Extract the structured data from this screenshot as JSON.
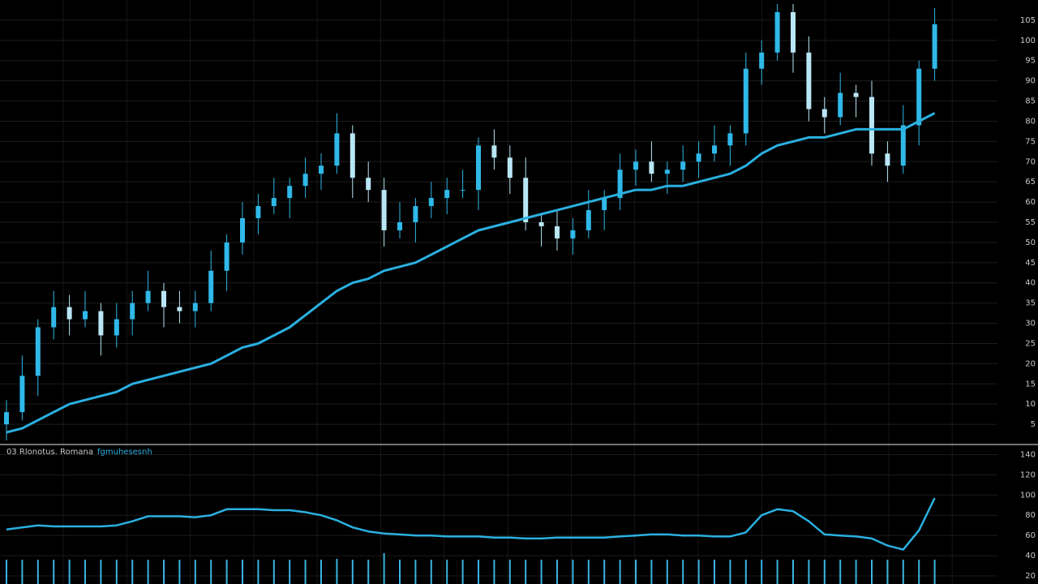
{
  "chart_data": [
    {
      "type": "candlestick",
      "up_color": "#2fb8e8",
      "down_color": "#b9e6f4",
      "grid": true,
      "ylim": [
        0,
        110
      ],
      "yticks": [
        5,
        10,
        15,
        20,
        25,
        30,
        35,
        40,
        45,
        50,
        55,
        60,
        65,
        70,
        75,
        80,
        85,
        90,
        95,
        100,
        105
      ],
      "open": [
        5,
        8,
        17,
        29,
        34,
        31,
        33,
        27,
        31,
        35,
        38,
        34,
        33,
        35,
        43,
        50,
        56,
        59,
        61,
        64,
        67,
        69,
        77,
        66,
        63,
        53,
        55,
        59,
        61,
        63,
        63,
        74,
        71,
        66,
        55,
        54,
        51,
        53,
        58,
        61,
        68,
        70,
        67,
        68,
        70,
        72,
        74,
        77,
        93,
        97,
        107,
        97,
        83,
        81,
        87,
        86,
        72,
        69,
        79,
        93
      ],
      "high": [
        11,
        22,
        31,
        38,
        37,
        38,
        35,
        35,
        38,
        43,
        40,
        38,
        38,
        48,
        52,
        60,
        62,
        66,
        66,
        71,
        72,
        82,
        79,
        70,
        66,
        60,
        61,
        65,
        66,
        68,
        76,
        78,
        74,
        71,
        57,
        58,
        56,
        63,
        63,
        72,
        73,
        75,
        70,
        74,
        75,
        79,
        79,
        97,
        100,
        109,
        109,
        101,
        86,
        92,
        89,
        90,
        75,
        84,
        95,
        108
      ],
      "low": [
        1,
        6,
        12,
        26,
        27,
        29,
        22,
        24,
        27,
        33,
        29,
        30,
        29,
        33,
        38,
        47,
        52,
        57,
        56,
        61,
        63,
        67,
        61,
        60,
        49,
        51,
        50,
        56,
        57,
        61,
        58,
        68,
        62,
        53,
        49,
        48,
        47,
        51,
        53,
        58,
        64,
        65,
        62,
        65,
        66,
        70,
        69,
        74,
        89,
        95,
        92,
        80,
        77,
        79,
        81,
        69,
        65,
        67,
        74,
        90
      ],
      "close": [
        8,
        17,
        29,
        34,
        31,
        33,
        27,
        31,
        35,
        38,
        34,
        33,
        35,
        43,
        50,
        56,
        59,
        61,
        64,
        67,
        69,
        77,
        66,
        63,
        53,
        55,
        59,
        61,
        63,
        63,
        74,
        71,
        66,
        55,
        54,
        51,
        53,
        58,
        61,
        68,
        70,
        67,
        68,
        70,
        72,
        74,
        77,
        93,
        97,
        107,
        97,
        83,
        81,
        87,
        86,
        72,
        69,
        79,
        93,
        104
      ],
      "overlay": {
        "color": "#2ab0e0",
        "values": [
          3,
          4,
          6,
          8,
          10,
          11,
          12,
          13,
          15,
          16,
          17,
          18,
          19,
          20,
          22,
          24,
          25,
          27,
          29,
          32,
          35,
          38,
          40,
          41,
          43,
          44,
          45,
          47,
          49,
          51,
          53,
          54,
          55,
          56,
          57,
          58,
          59,
          60,
          61,
          62,
          63,
          63,
          64,
          64,
          65,
          66,
          67,
          69,
          72,
          74,
          75,
          76,
          76,
          77,
          78,
          78,
          78,
          78,
          80,
          82
        ]
      }
    },
    {
      "type": "line",
      "title": "03 Rlonotus. Romana",
      "grid": true,
      "ylim": [
        12,
        150
      ],
      "yticks": [
        20,
        40,
        60,
        80,
        100,
        120,
        140
      ],
      "series": [
        {
          "name": "fgmuhesesnh",
          "color": "#2ab0e0",
          "values": [
            66,
            68,
            70,
            69,
            69,
            69,
            69,
            70,
            74,
            79,
            79,
            79,
            78,
            80,
            86,
            86,
            86,
            85,
            85,
            83,
            80,
            75,
            68,
            64,
            62,
            61,
            60,
            60,
            59,
            59,
            59,
            58,
            58,
            57,
            57,
            58,
            58,
            58,
            58,
            59,
            60,
            61,
            61,
            60,
            60,
            59,
            59,
            63,
            80,
            86,
            84,
            74,
            61,
            60,
            59,
            57,
            50,
            46,
            65,
            97
          ]
        }
      ],
      "volume": {
        "color": "#3ab4e0",
        "ylim": [
          0,
          40
        ],
        "values": [
          30,
          30,
          30,
          30,
          30,
          30,
          30,
          30,
          30,
          30,
          30,
          30,
          30,
          30,
          30,
          30,
          30,
          30,
          30,
          30,
          30,
          31,
          30,
          30,
          38,
          30,
          30,
          30,
          30,
          30,
          30,
          30,
          30,
          30,
          30,
          30,
          30,
          30,
          30,
          30,
          30,
          30,
          30,
          30,
          30,
          30,
          30,
          30,
          30,
          30,
          30,
          30,
          30,
          30,
          30,
          30,
          30,
          30,
          30,
          30
        ]
      }
    }
  ]
}
